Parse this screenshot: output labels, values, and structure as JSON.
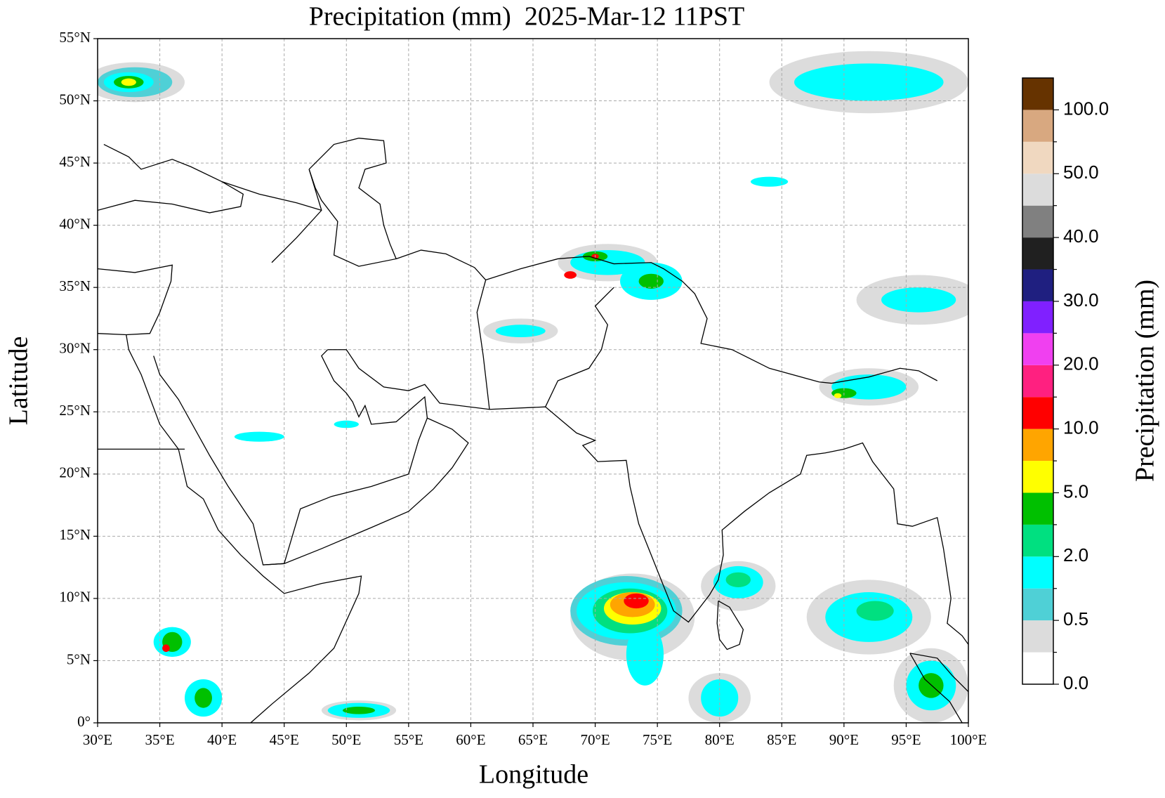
{
  "chart_data": {
    "type": "map",
    "title": "Precipitation (mm)  2025-Mar-12 11PST",
    "x_label": "Longitude",
    "y_label": "Latitude",
    "xlim": [
      30,
      100
    ],
    "ylim": [
      0,
      55
    ],
    "xticks": [
      {
        "value": 30,
        "label": "30°E"
      },
      {
        "value": 35,
        "label": "35°E"
      },
      {
        "value": 40,
        "label": "40°E"
      },
      {
        "value": 45,
        "label": "45°E"
      },
      {
        "value": 50,
        "label": "50°E"
      },
      {
        "value": 55,
        "label": "55°E"
      },
      {
        "value": 60,
        "label": "60°E"
      },
      {
        "value": 65,
        "label": "65°E"
      },
      {
        "value": 70,
        "label": "70°E"
      },
      {
        "value": 75,
        "label": "75°E"
      },
      {
        "value": 80,
        "label": "80°E"
      },
      {
        "value": 85,
        "label": "85°E"
      },
      {
        "value": 90,
        "label": "90°E"
      },
      {
        "value": 95,
        "label": "95°E"
      },
      {
        "value": 100,
        "label": "100°E"
      }
    ],
    "yticks": [
      {
        "value": 0,
        "label": "0°"
      },
      {
        "value": 5,
        "label": "5°N"
      },
      {
        "value": 10,
        "label": "10°N"
      },
      {
        "value": 15,
        "label": "15°N"
      },
      {
        "value": 20,
        "label": "20°N"
      },
      {
        "value": 25,
        "label": "25°N"
      },
      {
        "value": 30,
        "label": "30°N"
      },
      {
        "value": 35,
        "label": "35°N"
      },
      {
        "value": 40,
        "label": "40°N"
      },
      {
        "value": 45,
        "label": "45°N"
      },
      {
        "value": 50,
        "label": "50°N"
      },
      {
        "value": 55,
        "label": "55°N"
      }
    ],
    "grid": true,
    "colorbar": {
      "label": "Precipitation (mm)",
      "colors": [
        "#ffffff",
        "#dcdcdc",
        "#4fd0d6",
        "#00ffff",
        "#00e080",
        "#00c000",
        "#ffff00",
        "#ffa500",
        "#ff0000",
        "#ff2080",
        "#f040f0",
        "#8020ff",
        "#1f1f80",
        "#202020",
        "#808080",
        "#dcdcdc",
        "#f0d8c0",
        "#d8a880",
        "#663300"
      ],
      "tick_labels": [
        "0.0",
        "0.5",
        "2.0",
        "5.0",
        "10.0",
        "20.0",
        "30.0",
        "40.0",
        "50.0",
        "100.0"
      ]
    }
  }
}
